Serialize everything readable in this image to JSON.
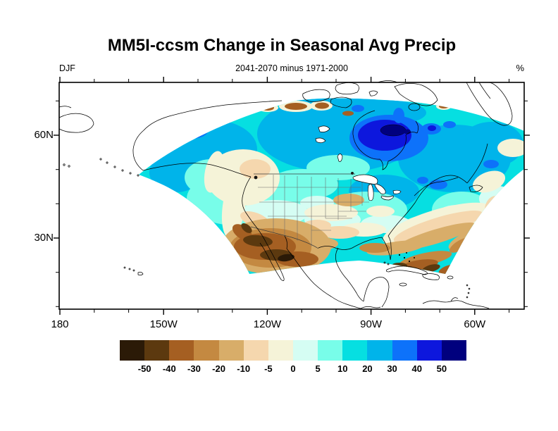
{
  "title": "MM5I-ccsm Change in Seasonal Avg Precip",
  "header": {
    "left": "DJF",
    "center": "2041-2070 minus 1971-2000",
    "right": "%"
  },
  "axes": {
    "y_ticks": [
      "60N",
      "30N"
    ],
    "x_ticks": [
      "180",
      "150W",
      "120W",
      "90W",
      "60W"
    ]
  },
  "colorbar": {
    "labels": [
      "-50",
      "-40",
      "-30",
      "-20",
      "-10",
      "-5",
      "0",
      "5",
      "10",
      "20",
      "30",
      "40",
      "50"
    ],
    "colors": [
      "#2b1a07",
      "#5c390f",
      "#a55f22",
      "#c48941",
      "#d8ad69",
      "#f5d7ae",
      "#f5f3d8",
      "#d5fdf3",
      "#78fde9",
      "#06dfe1",
      "#00b4ea",
      "#0d72fa",
      "#0d17dd",
      "#00007e"
    ]
  },
  "chart_data": {
    "type": "heatmap",
    "title": "MM5I-ccsm Change in Seasonal Avg Precip",
    "season": "DJF",
    "period": "2041-2070 minus 1971-2000",
    "units": "%",
    "levels": [
      -50,
      -40,
      -30,
      -20,
      -10,
      -5,
      0,
      5,
      10,
      20,
      30,
      40,
      50
    ],
    "palette": [
      "#2b1a07",
      "#5c390f",
      "#a55f22",
      "#c48941",
      "#d8ad69",
      "#f5d7ae",
      "#f5f3d8",
      "#d5fdf3",
      "#78fde9",
      "#06dfe1",
      "#00b4ea",
      "#0d72fa",
      "#0d17dd",
      "#00007e"
    ],
    "x_axis": {
      "ticks": [
        "180",
        "150W",
        "120W",
        "90W",
        "60W"
      ],
      "minor_tick_every_deg": 10
    },
    "y_axis": {
      "ticks": [
        "60N",
        "30N"
      ],
      "minor_tick_every_deg": 10
    },
    "approx_extent": {
      "lon": [
        "180",
        "46W"
      ],
      "lat": [
        "9N",
        "76N"
      ]
    },
    "legend_position": "bottom",
    "grid": false,
    "region": "North America regional climate model domain (fan-shaped)",
    "features": [
      "Strong increase of 40 to >50% centered over Hudson Bay and northern Quebec",
      "Broad 10-30% increase across Canada, Alaska and the northern United States",
      "Decrease of 30 to >50% over the southwestern US and northwestern Mexico",
      "Decrease of 10-40% in a band along the Gulf coast, southeastern US and southern domain edge",
      "Scattered 20-50% decreases (brown patches) over Arctic islands at the northern domain edge",
      "Near-zero to -5% (cream) band along the Pacific Northwest coast and central plains"
    ]
  }
}
